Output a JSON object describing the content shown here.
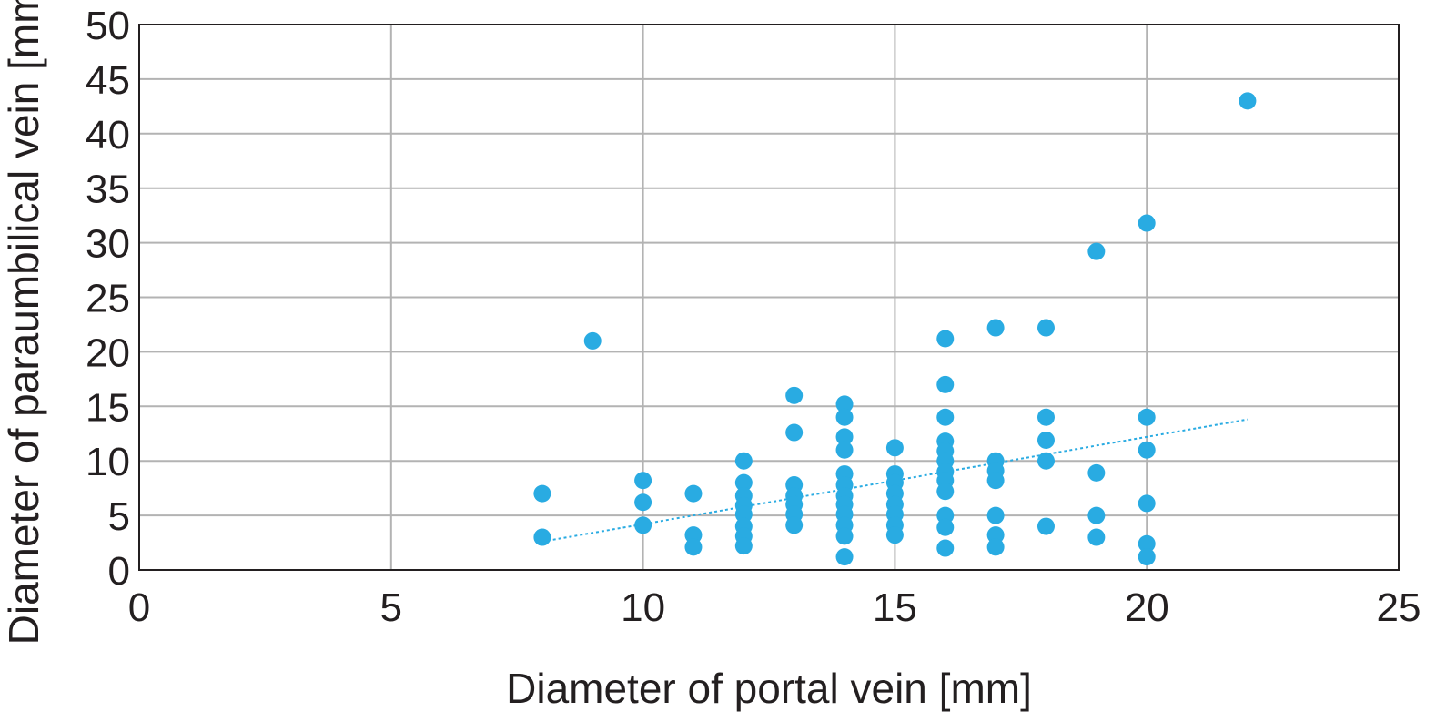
{
  "chart_data": {
    "type": "scatter",
    "title": "",
    "xlabel": "Diameter of portal vein [mm]",
    "ylabel": "Diameter of paraumbilical vein [mm]",
    "xlim": [
      0,
      25
    ],
    "ylim": [
      0,
      50
    ],
    "xticks": [
      "0",
      "5",
      "10",
      "15",
      "20",
      "25"
    ],
    "yticks": [
      "0",
      "5",
      "10",
      "15",
      "20",
      "25",
      "30",
      "35",
      "40",
      "45",
      "50"
    ],
    "grid": true,
    "legend": "none",
    "colors": {
      "points": "#29abe2",
      "trendline": "#29abe2",
      "grid": "#b3b3b3",
      "frame": "#231f20",
      "text": "#231f20"
    },
    "series": [
      {
        "points": [
          [
            8,
            7
          ],
          [
            8,
            3
          ],
          [
            9,
            21
          ],
          [
            10,
            8.2
          ],
          [
            10,
            6.2
          ],
          [
            10,
            4.1
          ],
          [
            11,
            7
          ],
          [
            11,
            3.2
          ],
          [
            11,
            2.1
          ],
          [
            12,
            10
          ],
          [
            12,
            8
          ],
          [
            12,
            6.8
          ],
          [
            12,
            5.9
          ],
          [
            12,
            5.1
          ],
          [
            12,
            4
          ],
          [
            12,
            3.1
          ],
          [
            12,
            2.2
          ],
          [
            13,
            16
          ],
          [
            13,
            12.6
          ],
          [
            13,
            7.8
          ],
          [
            13,
            6.8
          ],
          [
            13,
            6
          ],
          [
            13,
            5.1
          ],
          [
            13,
            4.1
          ],
          [
            14,
            15.2
          ],
          [
            14,
            14
          ],
          [
            14,
            12.2
          ],
          [
            14,
            11
          ],
          [
            14,
            8.8
          ],
          [
            14,
            7.8
          ],
          [
            14,
            6.8
          ],
          [
            14,
            6
          ],
          [
            14,
            5.1
          ],
          [
            14,
            4.1
          ],
          [
            14,
            3.1
          ],
          [
            14,
            1.2
          ],
          [
            15,
            11.2
          ],
          [
            15,
            8.8
          ],
          [
            15,
            8
          ],
          [
            15,
            7
          ],
          [
            15,
            6
          ],
          [
            15,
            5.1
          ],
          [
            15,
            4.1
          ],
          [
            15,
            3.2
          ],
          [
            16,
            21.2
          ],
          [
            16,
            17
          ],
          [
            16,
            14
          ],
          [
            16,
            11.8
          ],
          [
            16,
            10.9
          ],
          [
            16,
            10
          ],
          [
            16,
            9
          ],
          [
            16,
            8.2
          ],
          [
            16,
            7.2
          ],
          [
            16,
            5
          ],
          [
            16,
            3.9
          ],
          [
            16,
            2
          ],
          [
            17,
            22.2
          ],
          [
            17,
            10
          ],
          [
            17,
            9.1
          ],
          [
            17,
            8.2
          ],
          [
            17,
            5
          ],
          [
            17,
            3.2
          ],
          [
            17,
            2.1
          ],
          [
            18,
            22.2
          ],
          [
            18,
            14
          ],
          [
            18,
            11.9
          ],
          [
            18,
            10
          ],
          [
            18,
            4
          ],
          [
            19,
            29.2
          ],
          [
            19,
            8.9
          ],
          [
            19,
            5
          ],
          [
            19,
            3
          ],
          [
            20,
            31.8
          ],
          [
            20,
            14
          ],
          [
            20,
            11
          ],
          [
            20,
            6.1
          ],
          [
            20,
            2.4
          ],
          [
            20,
            1.2
          ],
          [
            22,
            43
          ]
        ]
      }
    ],
    "trendline": {
      "style": "dotted",
      "x": [
        8,
        22
      ],
      "y": [
        2.6,
        13.8
      ]
    }
  }
}
